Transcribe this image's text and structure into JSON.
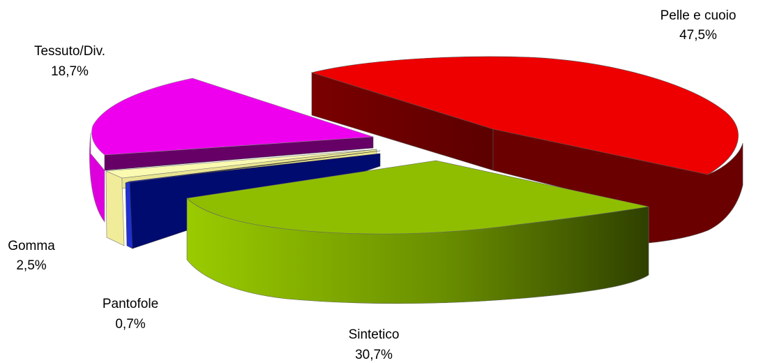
{
  "chart_data": {
    "type": "pie",
    "style": "3d-exploded",
    "title": "",
    "legend": "none",
    "slices": [
      {
        "category": "Pelle e cuoio",
        "value": 47.5,
        "value_label": "47,5%",
        "color": "#ee0000",
        "side_color": "#6b0000"
      },
      {
        "category": "Sintetico",
        "value": 30.7,
        "value_label": "30,7%",
        "color": "#8fbe00",
        "side_color": "#3f5400"
      },
      {
        "category": "Pantofole",
        "value": 0.7,
        "value_label": "0,7%",
        "color": "#1f2fd8",
        "side_color": "#000b70"
      },
      {
        "category": "Gomma",
        "value": 2.5,
        "value_label": "2,5%",
        "color": "#fafab0",
        "side_color": "#e8e490"
      },
      {
        "category": "Tessuto/Div.",
        "value": 18.7,
        "value_label": "18,7%",
        "color": "#ee00ee",
        "side_color": "#660066"
      }
    ]
  }
}
